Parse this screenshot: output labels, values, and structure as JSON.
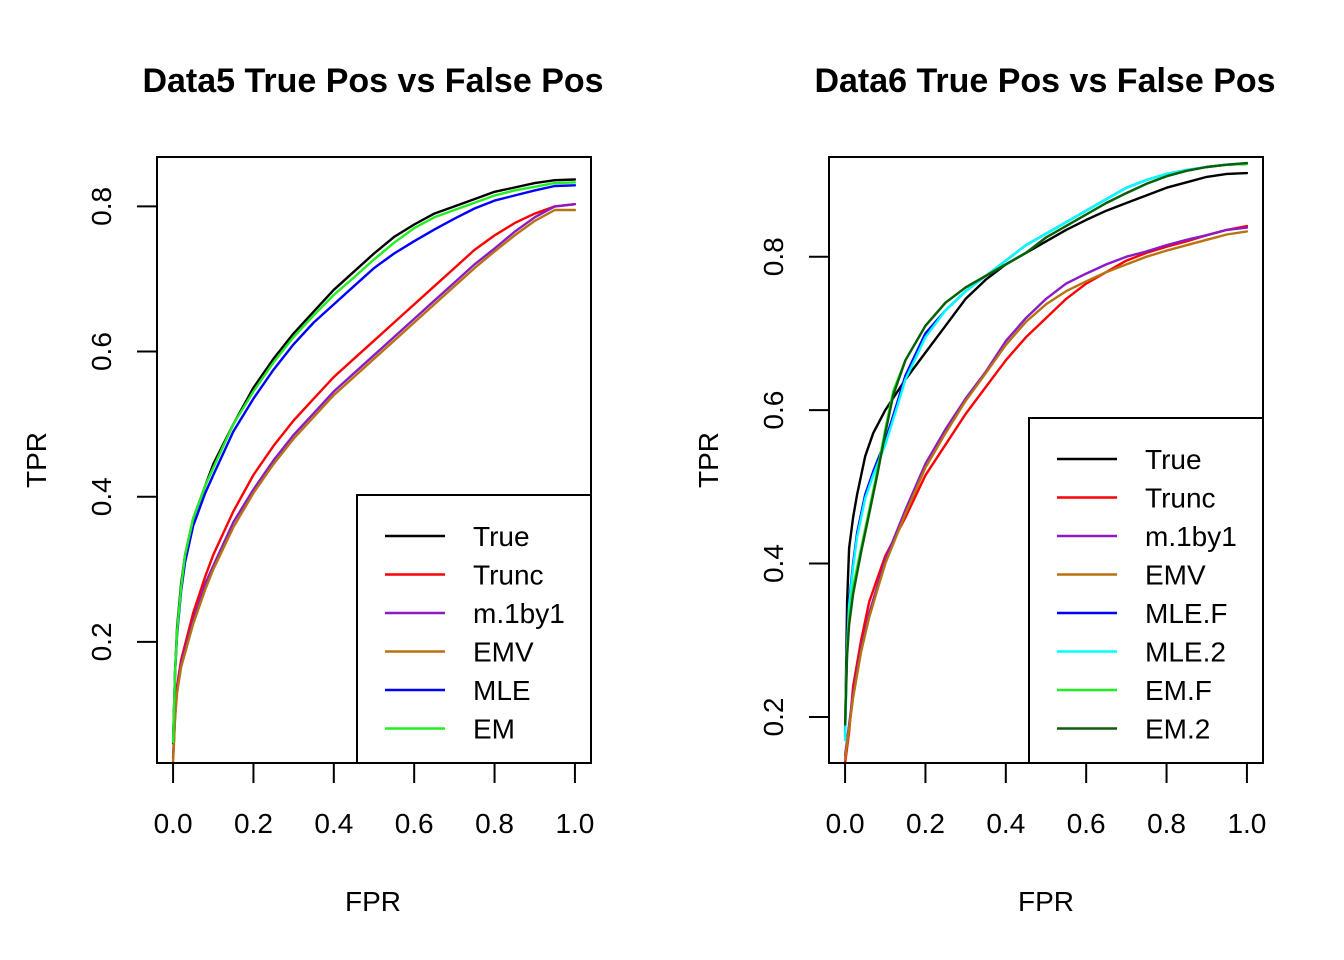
{
  "chart_data": [
    {
      "type": "line",
      "title": "Data5 True Pos vs False Pos",
      "xlabel": "FPR",
      "ylabel": "TPR",
      "xlim": [
        -0.04,
        1.04
      ],
      "ylim": [
        0.0332,
        0.868
      ],
      "xticks": [
        0.0,
        0.2,
        0.4,
        0.6,
        0.8,
        1.0
      ],
      "xtick_labels": [
        "0.0",
        "0.2",
        "0.4",
        "0.6",
        "0.8",
        "1.0"
      ],
      "yticks": [
        0.2,
        0.4,
        0.6,
        0.8
      ],
      "ytick_labels": [
        "0.2",
        "0.4",
        "0.6",
        "0.8"
      ],
      "legend_position": "bottom-right",
      "series": [
        {
          "name": "True",
          "color": "#000000",
          "x": [
            0,
            0.005,
            0.01,
            0.02,
            0.03,
            0.05,
            0.08,
            0.1,
            0.15,
            0.2,
            0.25,
            0.3,
            0.35,
            0.4,
            0.45,
            0.5,
            0.55,
            0.6,
            0.65,
            0.7,
            0.75,
            0.8,
            0.85,
            0.9,
            0.95,
            1.0
          ],
          "y": [
            0.06,
            0.16,
            0.22,
            0.28,
            0.32,
            0.37,
            0.415,
            0.445,
            0.5,
            0.55,
            0.59,
            0.625,
            0.655,
            0.685,
            0.71,
            0.735,
            0.758,
            0.775,
            0.79,
            0.8,
            0.81,
            0.82,
            0.826,
            0.832,
            0.836,
            0.837
          ]
        },
        {
          "name": "Trunc",
          "color": "#ff0000",
          "x": [
            0,
            0.005,
            0.01,
            0.02,
            0.05,
            0.08,
            0.1,
            0.15,
            0.2,
            0.25,
            0.3,
            0.35,
            0.4,
            0.45,
            0.5,
            0.55,
            0.6,
            0.65,
            0.7,
            0.75,
            0.8,
            0.85,
            0.9,
            0.95,
            1.0
          ],
          "y": [
            0.04,
            0.1,
            0.14,
            0.175,
            0.24,
            0.29,
            0.32,
            0.38,
            0.43,
            0.47,
            0.505,
            0.535,
            0.565,
            0.59,
            0.615,
            0.64,
            0.665,
            0.69,
            0.715,
            0.74,
            0.76,
            0.777,
            0.79,
            0.8,
            0.803
          ]
        },
        {
          "name": "m.1by1",
          "color": "#8b1bc6",
          "x": [
            0,
            0.005,
            0.01,
            0.02,
            0.05,
            0.08,
            0.1,
            0.15,
            0.2,
            0.25,
            0.3,
            0.35,
            0.4,
            0.45,
            0.5,
            0.55,
            0.6,
            0.65,
            0.7,
            0.75,
            0.8,
            0.85,
            0.9,
            0.95,
            1.0
          ],
          "y": [
            0.04,
            0.1,
            0.135,
            0.17,
            0.23,
            0.28,
            0.305,
            0.365,
            0.41,
            0.45,
            0.485,
            0.515,
            0.545,
            0.57,
            0.595,
            0.62,
            0.645,
            0.67,
            0.695,
            0.72,
            0.742,
            0.765,
            0.785,
            0.8,
            0.803
          ]
        },
        {
          "name": "EMV",
          "color": "#b8720e",
          "x": [
            0,
            0.005,
            0.01,
            0.02,
            0.05,
            0.08,
            0.1,
            0.15,
            0.2,
            0.25,
            0.3,
            0.35,
            0.4,
            0.45,
            0.5,
            0.55,
            0.6,
            0.65,
            0.7,
            0.75,
            0.8,
            0.85,
            0.9,
            0.95,
            1.0
          ],
          "y": [
            0.035,
            0.095,
            0.13,
            0.165,
            0.225,
            0.272,
            0.3,
            0.358,
            0.405,
            0.445,
            0.48,
            0.51,
            0.54,
            0.565,
            0.59,
            0.615,
            0.64,
            0.665,
            0.69,
            0.715,
            0.738,
            0.76,
            0.78,
            0.795,
            0.795
          ]
        },
        {
          "name": "MLE",
          "color": "#0000ff",
          "x": [
            0,
            0.005,
            0.01,
            0.02,
            0.03,
            0.05,
            0.08,
            0.1,
            0.15,
            0.2,
            0.25,
            0.3,
            0.35,
            0.4,
            0.45,
            0.5,
            0.55,
            0.6,
            0.65,
            0.7,
            0.75,
            0.8,
            0.85,
            0.9,
            0.95,
            1.0
          ],
          "y": [
            0.065,
            0.16,
            0.21,
            0.27,
            0.31,
            0.36,
            0.405,
            0.43,
            0.49,
            0.535,
            0.575,
            0.61,
            0.64,
            0.665,
            0.69,
            0.715,
            0.735,
            0.752,
            0.768,
            0.783,
            0.797,
            0.808,
            0.815,
            0.822,
            0.828,
            0.829
          ]
        },
        {
          "name": "EM",
          "color": "#22ee22",
          "x": [
            0,
            0.005,
            0.01,
            0.02,
            0.03,
            0.05,
            0.08,
            0.1,
            0.15,
            0.2,
            0.25,
            0.3,
            0.35,
            0.4,
            0.45,
            0.5,
            0.55,
            0.6,
            0.65,
            0.7,
            0.75,
            0.8,
            0.85,
            0.9,
            0.95,
            1.0
          ],
          "y": [
            0.062,
            0.16,
            0.215,
            0.275,
            0.32,
            0.37,
            0.415,
            0.44,
            0.5,
            0.545,
            0.585,
            0.62,
            0.65,
            0.678,
            0.702,
            0.727,
            0.75,
            0.77,
            0.785,
            0.795,
            0.805,
            0.815,
            0.822,
            0.827,
            0.832,
            0.833
          ]
        }
      ]
    },
    {
      "type": "line",
      "title": "Data6 True Pos vs False Pos",
      "xlabel": "FPR",
      "ylabel": "TPR",
      "xlim": [
        -0.04,
        1.04
      ],
      "ylim": [
        0.14,
        0.93
      ],
      "xticks": [
        0.0,
        0.2,
        0.4,
        0.6,
        0.8,
        1.0
      ],
      "xtick_labels": [
        "0.0",
        "0.2",
        "0.4",
        "0.6",
        "0.8",
        "1.0"
      ],
      "yticks": [
        0.2,
        0.4,
        0.6,
        0.8
      ],
      "ytick_labels": [
        "0.2",
        "0.4",
        "0.6",
        "0.8"
      ],
      "legend_position": "bottom-right",
      "series": [
        {
          "name": "True",
          "color": "#000000",
          "x": [
            0,
            0.005,
            0.01,
            0.02,
            0.03,
            0.05,
            0.07,
            0.1,
            0.15,
            0.2,
            0.25,
            0.3,
            0.35,
            0.4,
            0.45,
            0.5,
            0.55,
            0.6,
            0.65,
            0.7,
            0.75,
            0.8,
            0.85,
            0.9,
            0.95,
            1.0
          ],
          "y": [
            0.175,
            0.35,
            0.42,
            0.46,
            0.49,
            0.54,
            0.57,
            0.6,
            0.64,
            0.675,
            0.71,
            0.745,
            0.77,
            0.79,
            0.805,
            0.82,
            0.835,
            0.848,
            0.86,
            0.87,
            0.88,
            0.89,
            0.897,
            0.904,
            0.908,
            0.909
          ]
        },
        {
          "name": "Trunc",
          "color": "#ff0000",
          "x": [
            0,
            0.005,
            0.01,
            0.02,
            0.04,
            0.06,
            0.08,
            0.1,
            0.15,
            0.2,
            0.25,
            0.3,
            0.35,
            0.4,
            0.45,
            0.5,
            0.55,
            0.6,
            0.65,
            0.7,
            0.75,
            0.8,
            0.85,
            0.9,
            0.95,
            1.0
          ],
          "y": [
            0.14,
            0.16,
            0.18,
            0.24,
            0.3,
            0.35,
            0.38,
            0.41,
            0.46,
            0.515,
            0.555,
            0.595,
            0.63,
            0.665,
            0.695,
            0.72,
            0.745,
            0.765,
            0.78,
            0.795,
            0.805,
            0.813,
            0.82,
            0.828,
            0.835,
            0.84
          ]
        },
        {
          "name": "m.1by1",
          "color": "#8b1bc6",
          "x": [
            0,
            0.005,
            0.01,
            0.02,
            0.04,
            0.06,
            0.08,
            0.1,
            0.15,
            0.2,
            0.25,
            0.3,
            0.35,
            0.4,
            0.45,
            0.5,
            0.55,
            0.6,
            0.65,
            0.7,
            0.75,
            0.8,
            0.85,
            0.9,
            0.95,
            1.0
          ],
          "y": [
            0.15,
            0.17,
            0.19,
            0.23,
            0.29,
            0.335,
            0.37,
            0.405,
            0.47,
            0.53,
            0.575,
            0.615,
            0.65,
            0.69,
            0.72,
            0.745,
            0.765,
            0.778,
            0.79,
            0.8,
            0.807,
            0.815,
            0.822,
            0.828,
            0.835,
            0.838
          ]
        },
        {
          "name": "EMV",
          "color": "#b8720e",
          "x": [
            0,
            0.005,
            0.01,
            0.02,
            0.04,
            0.06,
            0.08,
            0.1,
            0.15,
            0.2,
            0.25,
            0.3,
            0.35,
            0.4,
            0.45,
            0.5,
            0.55,
            0.6,
            0.65,
            0.7,
            0.75,
            0.8,
            0.85,
            0.9,
            0.95,
            1.0
          ],
          "y": [
            0.145,
            0.165,
            0.185,
            0.225,
            0.285,
            0.33,
            0.365,
            0.4,
            0.465,
            0.525,
            0.57,
            0.612,
            0.648,
            0.685,
            0.715,
            0.738,
            0.755,
            0.768,
            0.78,
            0.79,
            0.8,
            0.808,
            0.815,
            0.822,
            0.829,
            0.833
          ]
        },
        {
          "name": "MLE.F",
          "color": "#0000ff",
          "x": [
            0,
            0.005,
            0.01,
            0.02,
            0.03,
            0.05,
            0.07,
            0.1,
            0.13,
            0.15,
            0.2,
            0.25,
            0.3,
            0.35,
            0.4,
            0.45,
            0.5,
            0.55,
            0.6,
            0.65,
            0.7,
            0.75,
            0.8,
            0.85,
            0.9,
            0.95,
            1.0
          ],
          "y": [
            0.18,
            0.3,
            0.35,
            0.4,
            0.44,
            0.49,
            0.52,
            0.56,
            0.61,
            0.645,
            0.7,
            0.73,
            0.755,
            0.775,
            0.795,
            0.815,
            0.83,
            0.845,
            0.86,
            0.875,
            0.89,
            0.9,
            0.908,
            0.913,
            0.917,
            0.92,
            0.921
          ]
        },
        {
          "name": "MLE.2",
          "color": "#00ffff",
          "x": [
            0,
            0.005,
            0.01,
            0.02,
            0.03,
            0.05,
            0.07,
            0.1,
            0.13,
            0.15,
            0.2,
            0.25,
            0.3,
            0.35,
            0.4,
            0.45,
            0.5,
            0.55,
            0.6,
            0.65,
            0.7,
            0.75,
            0.8,
            0.85,
            0.9,
            0.95,
            1.0
          ],
          "y": [
            0.17,
            0.29,
            0.345,
            0.395,
            0.435,
            0.485,
            0.515,
            0.555,
            0.605,
            0.64,
            0.695,
            0.73,
            0.755,
            0.775,
            0.795,
            0.815,
            0.83,
            0.845,
            0.86,
            0.875,
            0.89,
            0.9,
            0.908,
            0.913,
            0.917,
            0.92,
            0.922
          ]
        },
        {
          "name": "EM.F",
          "color": "#22ee22",
          "x": [
            0,
            0.005,
            0.01,
            0.02,
            0.04,
            0.06,
            0.08,
            0.1,
            0.12,
            0.15,
            0.2,
            0.25,
            0.3,
            0.35,
            0.4,
            0.45,
            0.5,
            0.55,
            0.6,
            0.65,
            0.7,
            0.75,
            0.8,
            0.85,
            0.9,
            0.95,
            1.0
          ],
          "y": [
            0.2,
            0.29,
            0.33,
            0.37,
            0.42,
            0.47,
            0.52,
            0.575,
            0.625,
            0.665,
            0.71,
            0.74,
            0.76,
            0.775,
            0.79,
            0.805,
            0.825,
            0.84,
            0.855,
            0.87,
            0.883,
            0.895,
            0.905,
            0.912,
            0.917,
            0.92,
            0.921
          ]
        },
        {
          "name": "EM.2",
          "color": "#0b5c0b",
          "x": [
            0,
            0.005,
            0.01,
            0.02,
            0.04,
            0.06,
            0.08,
            0.1,
            0.12,
            0.15,
            0.2,
            0.25,
            0.3,
            0.35,
            0.4,
            0.45,
            0.5,
            0.55,
            0.6,
            0.65,
            0.7,
            0.75,
            0.8,
            0.85,
            0.9,
            0.95,
            1.0
          ],
          "y": [
            0.19,
            0.28,
            0.32,
            0.36,
            0.415,
            0.465,
            0.515,
            0.57,
            0.62,
            0.665,
            0.71,
            0.74,
            0.76,
            0.775,
            0.79,
            0.805,
            0.825,
            0.84,
            0.855,
            0.87,
            0.883,
            0.895,
            0.905,
            0.912,
            0.917,
            0.92,
            0.922
          ]
        }
      ]
    }
  ]
}
